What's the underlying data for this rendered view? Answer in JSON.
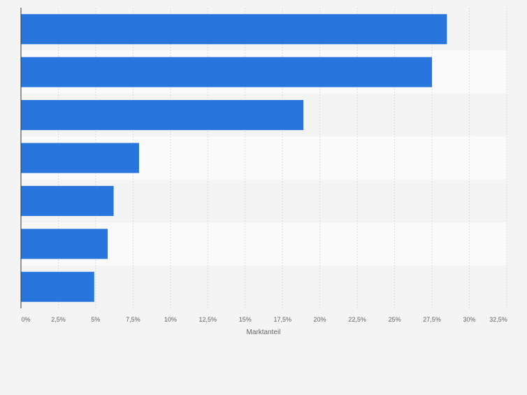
{
  "chart_data": {
    "type": "bar",
    "orientation": "horizontal",
    "categories": [
      "",
      "",
      "",
      "",
      "",
      "",
      ""
    ],
    "values": [
      28.5,
      27.5,
      18.9,
      7.9,
      6.2,
      5.8,
      4.9
    ],
    "xlabel": "Marktanteil",
    "xlim": [
      0,
      32.5
    ],
    "ticks": [
      0,
      2.5,
      5,
      7.5,
      10,
      12.5,
      15,
      17.5,
      20,
      22.5,
      25,
      27.5,
      30,
      32.5
    ],
    "tick_labels": [
      "0%",
      "2,5%",
      "5%",
      "7,5%",
      "10%",
      "12,5%",
      "15%",
      "17,5%",
      "20%",
      "22,5%",
      "25%",
      "27,5%",
      "30%",
      "32,5%"
    ],
    "grid": true,
    "bar_color": "#2876dd",
    "band_colors": [
      "#f4f4f4",
      "#fafafa"
    ]
  }
}
